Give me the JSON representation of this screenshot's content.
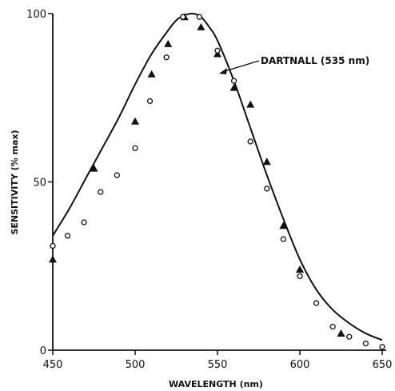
{
  "chart_data": {
    "type": "scatter",
    "title": "",
    "xlabel": "WAVELENGTH (nm)",
    "ylabel": "SENSITIVITY (% max)",
    "xlim": [
      450,
      650
    ],
    "ylim": [
      0,
      100
    ],
    "x_ticks": [
      "450",
      "500",
      "550",
      "600",
      "650"
    ],
    "y_ticks": [
      "0",
      "50",
      "100"
    ],
    "grid": false,
    "annotation": "DARTNALL (535 nm)",
    "series": [
      {
        "marker": "line",
        "x": [
          450,
          460,
          470,
          480,
          490,
          500,
          510,
          520,
          525,
          530,
          535,
          540,
          545,
          550,
          560,
          570,
          580,
          590,
          600,
          610,
          620,
          630,
          640,
          650
        ],
        "values": [
          34,
          42,
          51,
          60,
          69,
          79,
          88,
          95,
          98,
          99.5,
          100,
          99,
          96,
          92,
          80,
          66,
          52,
          39,
          27,
          18,
          12,
          8,
          5,
          3
        ]
      },
      {
        "marker": "triangle",
        "x": [
          450,
          475,
          500,
          510,
          520,
          530,
          540,
          550,
          560,
          570,
          580,
          590,
          600,
          625
        ],
        "values": [
          27,
          54,
          68,
          82,
          91,
          99,
          96,
          88,
          78,
          73,
          56,
          37,
          24,
          5
        ]
      },
      {
        "marker": "circle",
        "x": [
          450,
          459,
          469,
          479,
          489,
          500,
          509,
          519,
          529,
          539,
          550,
          560,
          570,
          580,
          590,
          600,
          610,
          620,
          630,
          640,
          650
        ],
        "values": [
          31,
          34,
          38,
          47,
          52,
          60,
          74,
          87,
          99,
          99,
          89,
          80,
          62,
          48,
          33,
          22,
          14,
          7,
          4,
          2,
          1
        ]
      }
    ]
  }
}
